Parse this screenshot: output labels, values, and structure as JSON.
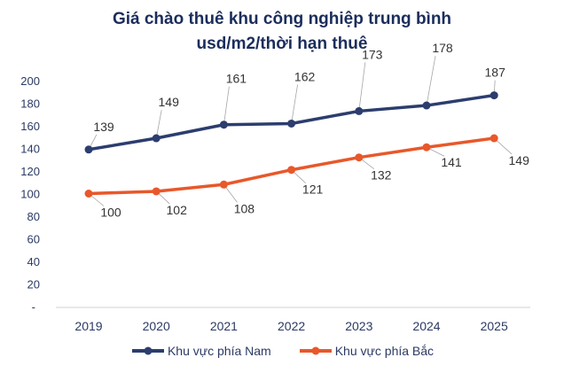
{
  "chart_data": {
    "type": "line",
    "title": "Giá chào thuê khu công nghiệp trung bình",
    "subtitle": "usd/m2/thời hạn thuê",
    "categories": [
      "2019",
      "2020",
      "2021",
      "2022",
      "2023",
      "2024",
      "2025"
    ],
    "y_ticks": [
      "-",
      "20",
      "40",
      "60",
      "80",
      "100",
      "120",
      "140",
      "160",
      "180",
      "200"
    ],
    "ylim": [
      0,
      200
    ],
    "grid": false,
    "legend_position": "bottom",
    "series": [
      {
        "name": "Khu vực phía Nam",
        "color": "#2c3d6e",
        "values": [
          139,
          149,
          161,
          162,
          173,
          178,
          187
        ]
      },
      {
        "name": "Khu vực phía Bắc",
        "color": "#e8582a",
        "values": [
          100,
          102,
          108,
          121,
          132,
          141,
          149
        ]
      }
    ]
  }
}
